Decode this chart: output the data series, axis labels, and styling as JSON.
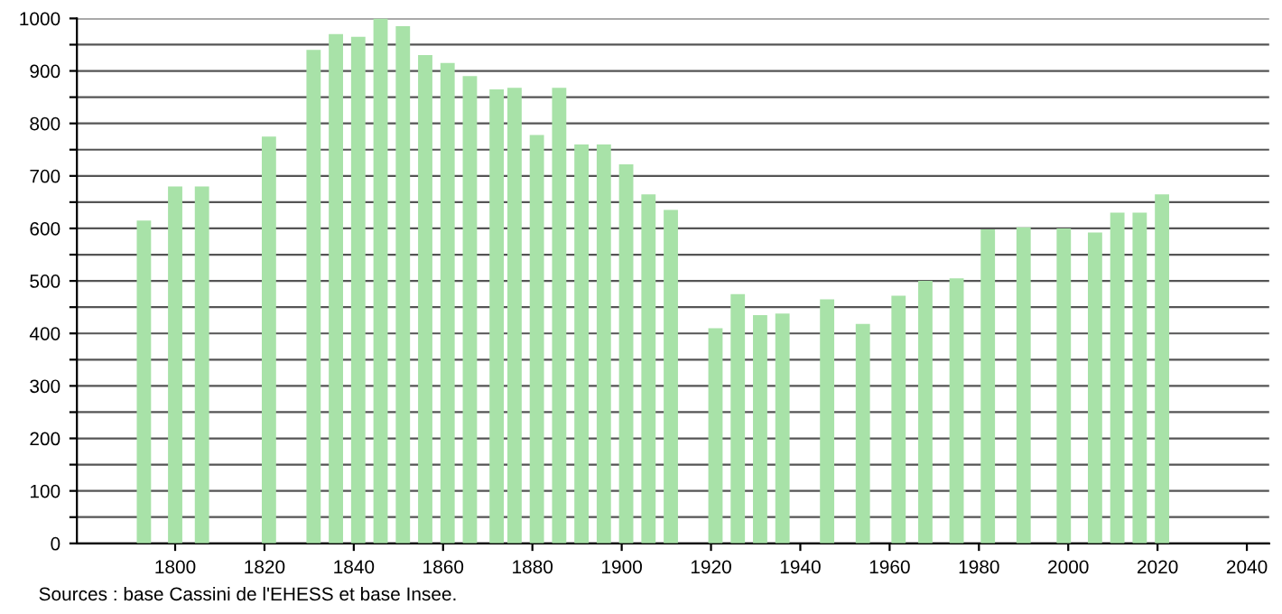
{
  "chart_data": {
    "type": "bar",
    "x": [
      1793,
      1800,
      1806,
      1821,
      1831,
      1836,
      1841,
      1846,
      1851,
      1856,
      1861,
      1866,
      1872,
      1876,
      1881,
      1886,
      1891,
      1896,
      1901,
      1906,
      1911,
      1921,
      1926,
      1931,
      1936,
      1946,
      1954,
      1962,
      1968,
      1975,
      1982,
      1990,
      1999,
      2006,
      2011,
      2016,
      2021
    ],
    "values": [
      615,
      680,
      680,
      775,
      940,
      970,
      965,
      1000,
      985,
      930,
      915,
      890,
      865,
      868,
      778,
      868,
      760,
      760,
      722,
      665,
      635,
      410,
      475,
      435,
      438,
      465,
      418,
      472,
      500,
      505,
      598,
      602,
      600,
      592,
      630,
      630,
      665
    ],
    "color": "#a8e2a8",
    "xlim": [
      1778,
      2045
    ],
    "xticks": [
      1800,
      1820,
      1840,
      1860,
      1880,
      1900,
      1920,
      1940,
      1960,
      1980,
      2000,
      2020,
      2040
    ],
    "ylim": [
      0,
      1000
    ],
    "yticks": [
      0,
      {
        "value": 50,
        "label": null
      },
      100,
      {
        "value": 150,
        "label": null
      },
      200,
      {
        "value": 250,
        "label": null
      },
      300,
      {
        "value": 350,
        "label": null
      },
      400,
      {
        "value": 450,
        "label": null
      },
      500,
      {
        "value": 550,
        "label": null
      },
      600,
      {
        "value": 650,
        "label": null
      },
      700,
      {
        "value": 750,
        "label": null
      },
      800,
      {
        "value": 850,
        "label": null
      },
      900,
      {
        "value": 950,
        "label": null
      },
      1000
    ],
    "grid": "y",
    "annotations": [
      "Sources : base Cassini de l'EHESS et base Insee."
    ]
  }
}
